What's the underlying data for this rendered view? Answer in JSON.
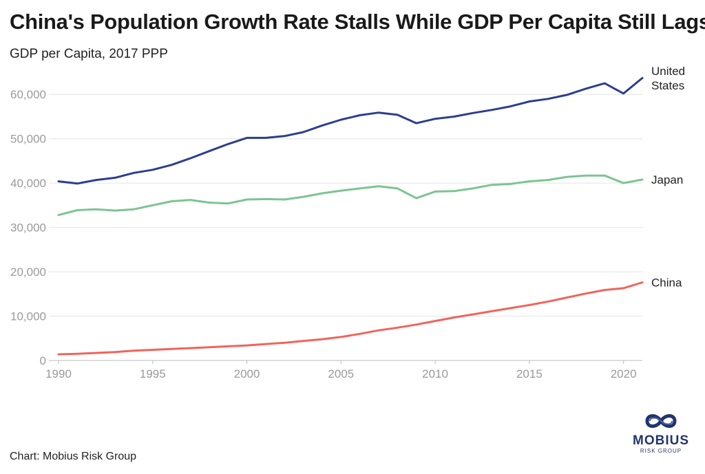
{
  "title": "China's Population Growth Rate Stalls While GDP Per Capita Still Lags",
  "subtitle": "GDP per Capita, 2017 PPP",
  "footer": "Chart: Mobius Risk Group",
  "logo": {
    "name": "MOBIUS",
    "sub": "RISK GROUP"
  },
  "chart_data": {
    "type": "line",
    "title": "China's Population Growth Rate Stalls While GDP Per Capita Still Lags",
    "ylabel": "GDP per Capita, 2017 PPP",
    "xlabel": "",
    "xlim": [
      1990,
      2021
    ],
    "ylim": [
      0,
      65000
    ],
    "grid": true,
    "x_ticks": [
      1990,
      1995,
      2000,
      2005,
      2010,
      2015,
      2020
    ],
    "y_ticks": [
      0,
      10000,
      20000,
      30000,
      40000,
      50000,
      60000
    ],
    "y_tick_labels": [
      "0",
      "10,000",
      "20,000",
      "30,000",
      "40,000",
      "50,000",
      "60,000"
    ],
    "x": [
      1990,
      1991,
      1992,
      1993,
      1994,
      1995,
      1996,
      1997,
      1998,
      1999,
      2000,
      2001,
      2002,
      2003,
      2004,
      2005,
      2006,
      2007,
      2008,
      2009,
      2010,
      2011,
      2012,
      2013,
      2014,
      2015,
      2016,
      2017,
      2018,
      2019,
      2020,
      2021
    ],
    "series": [
      {
        "name": "United States",
        "label_lines": [
          "United",
          "States"
        ],
        "color": "#2c3e8c",
        "values": [
          40400,
          39900,
          40700,
          41200,
          42300,
          43000,
          44100,
          45600,
          47200,
          48800,
          50200,
          50200,
          50600,
          51500,
          53000,
          54300,
          55300,
          55900,
          55400,
          53500,
          54500,
          55000,
          55800,
          56500,
          57300,
          58400,
          59000,
          59900,
          61300,
          62500,
          60200,
          63700
        ]
      },
      {
        "name": "Japan",
        "label_lines": [
          "Japan"
        ],
        "color": "#7cc492",
        "values": [
          32800,
          33900,
          34100,
          33800,
          34100,
          35000,
          35900,
          36200,
          35600,
          35400,
          36300,
          36400,
          36300,
          36900,
          37700,
          38300,
          38800,
          39300,
          38800,
          36600,
          38100,
          38200,
          38800,
          39600,
          39800,
          40400,
          40700,
          41400,
          41700,
          41700,
          40000,
          40800
        ]
      },
      {
        "name": "China",
        "label_lines": [
          "China"
        ],
        "color": "#f0645a",
        "values": [
          1400,
          1500,
          1700,
          1900,
          2200,
          2400,
          2600,
          2800,
          3000,
          3200,
          3400,
          3700,
          4000,
          4400,
          4800,
          5300,
          6000,
          6800,
          7400,
          8100,
          8900,
          9700,
          10400,
          11100,
          11800,
          12500,
          13300,
          14200,
          15100,
          15900,
          16300,
          17600
        ]
      }
    ]
  }
}
